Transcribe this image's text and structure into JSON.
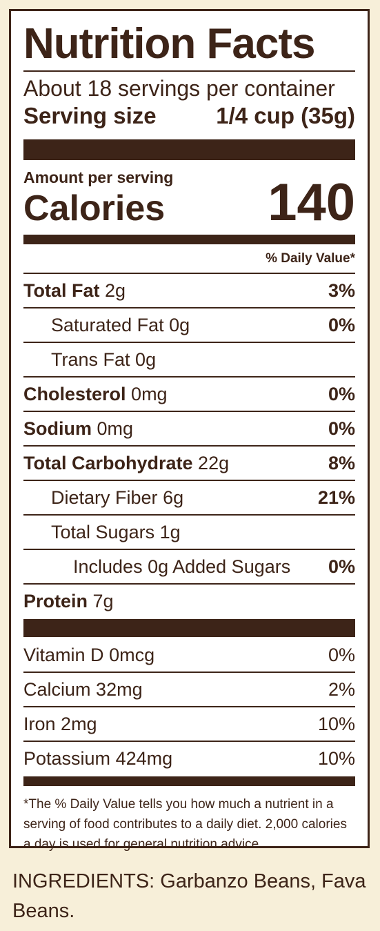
{
  "label": {
    "title": "Nutrition Facts",
    "servings_per_container": "About 18 servings per container",
    "serving_size_label": "Serving size",
    "serving_size_value": "1/4 cup (35g)",
    "amount_per_serving": "Amount per serving",
    "calories_label": "Calories",
    "calories_value": "140",
    "daily_value_header": "% Daily Value*",
    "nutrients": [
      {
        "name": "Total Fat",
        "amount": "2g",
        "dv": "3%"
      },
      {
        "name": "Saturated Fat",
        "amount": "0g",
        "dv": "0%"
      },
      {
        "name": "Trans Fat",
        "amount": "0g",
        "dv": ""
      },
      {
        "name": "Cholesterol",
        "amount": "0mg",
        "dv": "0%"
      },
      {
        "name": "Sodium",
        "amount": "0mg",
        "dv": "0%"
      },
      {
        "name": "Total Carbohydrate",
        "amount": "22g",
        "dv": "8%"
      },
      {
        "name": "Dietary Fiber",
        "amount": "6g",
        "dv": "21%"
      },
      {
        "name": "Total Sugars",
        "amount": "1g",
        "dv": ""
      },
      {
        "name": "Includes 0g Added Sugars",
        "amount": "",
        "dv": "0%"
      },
      {
        "name": "Protein",
        "amount": "7g",
        "dv": ""
      }
    ],
    "vitamins": [
      {
        "name": "Vitamin D",
        "amount": "0mcg",
        "dv": "0%"
      },
      {
        "name": "Calcium",
        "amount": "32mg",
        "dv": "2%"
      },
      {
        "name": "Iron",
        "amount": "2mg",
        "dv": "10%"
      },
      {
        "name": "Potassium",
        "amount": "424mg",
        "dv": "10%"
      }
    ],
    "footnote": "*The % Daily Value tells you how much a nutrient in a serving of food contributes to a daily diet. 2,000 calories a day is used for general nutrition advice."
  },
  "ingredients": "INGREDIENTS: Garbanzo Beans, Fava Beans.",
  "colors": {
    "ink": "#3d2418",
    "background": "#f7efd9",
    "label_bg": "#ffffff"
  }
}
